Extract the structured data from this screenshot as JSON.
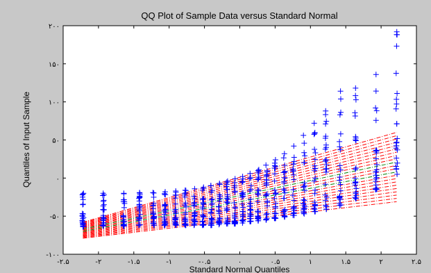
{
  "window": {
    "background": "#c8c8c8"
  },
  "chart_data": {
    "type": "scatter",
    "title": "QQ Plot of Sample Data versus Standard Normal",
    "xlabel": "Standard Normal Quantiles",
    "ylabel": "Quantiles of Input Sample",
    "xlim": [
      -2.5,
      2.5
    ],
    "ylim": [
      -100,
      200
    ],
    "xticks": [
      -2.5,
      -2,
      -1.5,
      -1,
      -0.5,
      0,
      0.5,
      1,
      1.5,
      2,
      2.5
    ],
    "xtick_labels": [
      "-۲.۵",
      "-۲",
      "-۱.۵",
      "-۱",
      "-۰.۵",
      "۰",
      "۰.۵",
      "۱",
      "۱.۵",
      "۲",
      "۲.۵"
    ],
    "yticks": [
      -100,
      -50,
      0,
      50,
      100,
      150,
      200
    ],
    "ytick_labels": [
      "-۱۰۰",
      "-۵۰",
      "۰",
      "۵۰",
      "۱۰۰",
      "۱۵۰",
      "۲۰۰"
    ],
    "grid": false,
    "colors": {
      "samples": "#0000ff",
      "reference": "#ff0000",
      "reference_center": "#008000"
    },
    "series": [
      {
        "role": "sample quantiles (+ markers)",
        "x": [
          -2.22,
          -1.93,
          -1.64,
          -1.42,
          -1.22,
          -1.06,
          -0.91,
          -0.77,
          -0.64,
          -0.52,
          -0.4,
          -0.29,
          -0.18,
          -0.07,
          0.04,
          0.15,
          0.26,
          0.38,
          0.5,
          0.63,
          0.76,
          0.91,
          1.06,
          1.22,
          1.42,
          1.64,
          1.93,
          2.22
        ],
        "y_low": [
          -64,
          -63,
          -63,
          -62,
          -62,
          -62,
          -62,
          -62,
          -62,
          -62,
          -62,
          -61,
          -60,
          -60,
          -59,
          -57,
          -56,
          -55,
          -53,
          -51,
          -49,
          -47,
          -44,
          -41,
          -36,
          -27,
          -15,
          5
        ],
        "y_high": [
          -20,
          -20,
          -20,
          -19,
          -19,
          -18,
          -17,
          -16,
          -14,
          -12,
          -10,
          -7,
          -4,
          -1,
          2,
          6,
          11,
          17,
          24,
          32,
          42,
          56,
          72,
          88,
          114,
          118,
          136,
          192
        ]
      },
      {
        "role": "reference lines (dash-dot)",
        "x_range": [
          -2.22,
          2.22
        ],
        "y_low": [
          -79,
          -31
        ],
        "y_high": [
          -58,
          60
        ]
      }
    ]
  }
}
